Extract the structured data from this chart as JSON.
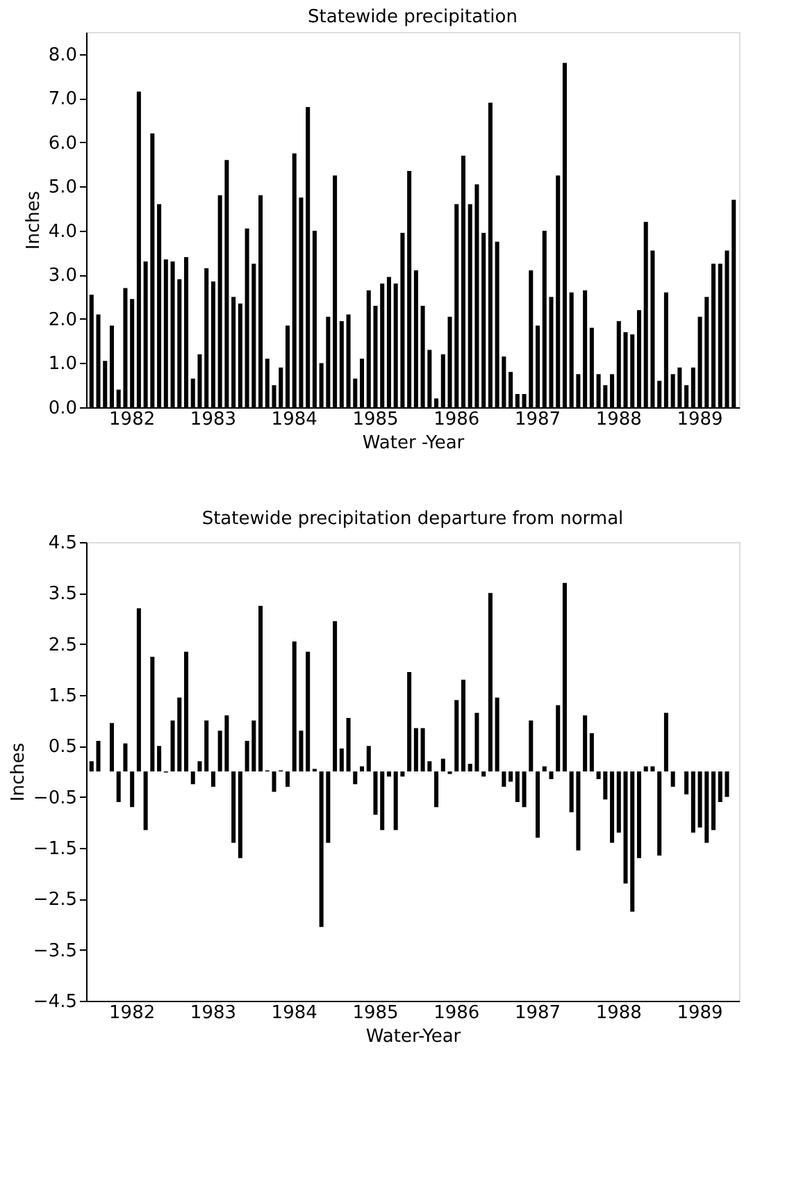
{
  "chart_data": [
    {
      "type": "bar",
      "title": "Statewide precipitation",
      "xlabel": "Water -Year",
      "ylabel": "Inches",
      "categories": [
        null,
        null,
        null,
        null,
        null,
        null,
        "1982",
        null,
        null,
        null,
        null,
        null,
        null,
        null,
        null,
        null,
        null,
        null,
        "1983",
        null,
        null,
        null,
        null,
        null,
        null,
        null,
        null,
        null,
        null,
        null,
        "1984",
        null,
        null,
        null,
        null,
        null,
        null,
        null,
        null,
        null,
        null,
        null,
        "1985",
        null,
        null,
        null,
        null,
        null,
        null,
        null,
        null,
        null,
        null,
        null,
        "1986",
        null,
        null,
        null,
        null,
        null,
        null,
        null,
        null,
        null,
        null,
        null,
        "1987",
        null,
        null,
        null,
        null,
        null,
        null,
        null,
        null,
        null,
        null,
        null,
        "1988",
        null,
        null,
        null,
        null,
        null,
        null,
        null,
        null,
        null,
        null,
        null,
        "1989",
        null,
        null,
        null,
        null,
        null
      ],
      "series": [
        {
          "color": "#000000",
          "values": [
            2.55,
            2.1,
            1.05,
            1.85,
            0.4,
            2.7,
            2.45,
            7.15,
            3.3,
            6.2,
            4.6,
            3.35,
            3.3,
            2.9,
            3.4,
            0.65,
            1.2,
            3.15,
            2.85,
            4.8,
            5.6,
            2.5,
            2.35,
            4.05,
            3.25,
            4.8,
            1.1,
            0.5,
            0.9,
            1.85,
            5.75,
            4.75,
            6.8,
            4.0,
            1.0,
            2.05,
            5.25,
            1.95,
            2.1,
            0.65,
            1.1,
            2.65,
            2.3,
            2.8,
            2.95,
            2.8,
            3.95,
            5.35,
            3.1,
            2.3,
            1.3,
            0.2,
            1.2,
            2.05,
            4.6,
            5.7,
            4.6,
            5.05,
            3.95,
            6.9,
            3.75,
            1.15,
            0.8,
            0.3,
            0.3,
            3.1,
            1.85,
            4.0,
            2.5,
            5.25,
            7.8,
            2.6,
            0.75,
            2.65,
            1.8,
            0.75,
            0.5,
            0.75,
            1.95,
            1.7,
            1.65,
            2.2,
            4.2,
            3.55,
            0.6,
            2.6,
            0.75,
            0.9,
            0.5,
            0.9,
            2.05,
            2.5,
            3.25,
            3.25,
            3.55,
            4.7
          ]
        }
      ],
      "ylim": [
        0,
        8.5
      ],
      "yticks": [
        {
          "value": 0,
          "label": "0.0"
        },
        {
          "value": 1,
          "label": "1.0"
        },
        {
          "value": 2,
          "label": "2.0"
        },
        {
          "value": 3,
          "label": "3.0"
        },
        {
          "value": 4,
          "label": "4.0"
        },
        {
          "value": 5,
          "label": "5.0"
        },
        {
          "value": 6,
          "label": "6.0"
        },
        {
          "value": 7,
          "label": "7.0"
        },
        {
          "value": 8,
          "label": "8.0"
        }
      ],
      "grid": false,
      "legend": false
    },
    {
      "type": "bar",
      "title": "Statewide precipitation departure from normal",
      "xlabel": "Water-Year",
      "ylabel": "Inches",
      "categories": [
        null,
        null,
        null,
        null,
        null,
        null,
        "1982",
        null,
        null,
        null,
        null,
        null,
        null,
        null,
        null,
        null,
        null,
        null,
        "1983",
        null,
        null,
        null,
        null,
        null,
        null,
        null,
        null,
        null,
        null,
        null,
        "1984",
        null,
        null,
        null,
        null,
        null,
        null,
        null,
        null,
        null,
        null,
        null,
        "1985",
        null,
        null,
        null,
        null,
        null,
        null,
        null,
        null,
        null,
        null,
        null,
        "1986",
        null,
        null,
        null,
        null,
        null,
        null,
        null,
        null,
        null,
        null,
        null,
        "1987",
        null,
        null,
        null,
        null,
        null,
        null,
        null,
        null,
        null,
        null,
        null,
        "1988",
        null,
        null,
        null,
        null,
        null,
        null,
        null,
        null,
        null,
        null,
        null,
        "1989",
        null,
        null,
        null,
        null,
        null
      ],
      "series": [
        {
          "color": "#000000",
          "values": [
            0.2,
            0.6,
            0.0,
            0.95,
            -0.6,
            0.55,
            -0.7,
            3.2,
            -1.15,
            2.25,
            0.5,
            -0.02,
            1.0,
            1.45,
            2.35,
            -0.25,
            0.2,
            1.0,
            -0.3,
            0.8,
            1.1,
            -1.4,
            -1.7,
            0.6,
            1.0,
            3.25,
            0.02,
            -0.4,
            0.02,
            -0.3,
            2.55,
            0.8,
            2.35,
            0.05,
            -3.05,
            -1.4,
            2.95,
            0.45,
            1.05,
            -0.25,
            0.1,
            0.5,
            -0.85,
            -1.15,
            -0.1,
            -1.15,
            -0.1,
            1.95,
            0.85,
            0.85,
            0.2,
            -0.7,
            0.25,
            -0.05,
            1.4,
            1.8,
            0.15,
            1.15,
            -0.1,
            3.5,
            1.45,
            -0.3,
            -0.2,
            -0.6,
            -0.7,
            1.0,
            -1.3,
            0.1,
            -0.15,
            1.3,
            3.7,
            -0.8,
            -1.55,
            1.1,
            0.75,
            -0.15,
            -0.55,
            -1.4,
            -1.2,
            -2.2,
            -2.75,
            -1.7,
            0.1,
            0.1,
            -1.65,
            1.15,
            -0.3,
            0.0,
            -0.45,
            -1.2,
            -1.1,
            -1.4,
            -1.15,
            -0.6,
            -0.5,
            null
          ]
        }
      ],
      "ylim": [
        -4.5,
        4.5
      ],
      "yticks": [
        4.5,
        3.5,
        2.5,
        1.5,
        0.5,
        -0.5,
        -1.5,
        -2.5,
        -3.5,
        -4.5
      ],
      "grid": false,
      "legend": false
    }
  ]
}
